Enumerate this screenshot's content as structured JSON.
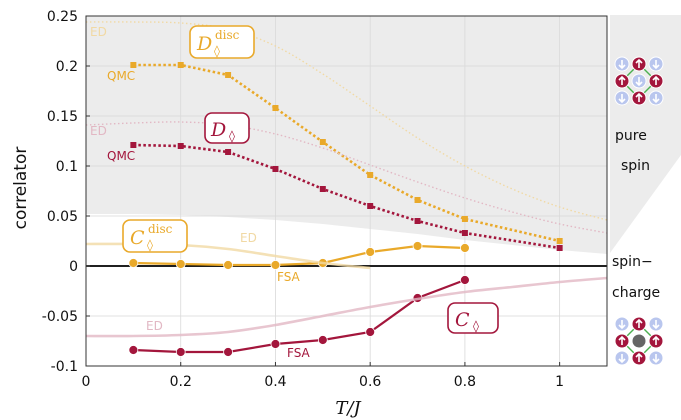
{
  "chart_data": {
    "type": "line",
    "title": "",
    "xlabel": "T/J",
    "ylabel": "correlator",
    "xlim": [
      0,
      1.1
    ],
    "ylim": [
      -0.1,
      0.25
    ],
    "xticks": [
      0,
      0.2,
      0.4,
      0.6,
      0.8,
      1
    ],
    "yticks": [
      0.25,
      0.2,
      0.15,
      0.1,
      0.05,
      0,
      -0.05,
      -0.1
    ],
    "xtick_labels": [
      "0",
      "0.2",
      "0.4",
      "0.6",
      "0.8",
      "1"
    ],
    "ytick_labels": [
      "0.25",
      "0.2",
      "0.15",
      "0.1",
      "0.05",
      "0",
      "-0.05",
      "-0.1"
    ],
    "grid": true,
    "colors": {
      "gold": "#e9a92a",
      "crimson": "#a3163c",
      "ed_gold": "#f1d9a4",
      "ed_red": "#e2b8c4",
      "shade": "#ececec"
    },
    "series": [
      {
        "name": "QMC D_disc",
        "style": "dotted-markers",
        "color": "gold",
        "x": [
          0.1,
          0.2,
          0.3,
          0.4,
          0.5,
          0.6,
          0.7,
          0.8,
          1.0
        ],
        "y": [
          0.201,
          0.201,
          0.191,
          0.158,
          0.124,
          0.091,
          0.066,
          0.047,
          0.025
        ]
      },
      {
        "name": "QMC D",
        "style": "dotted-markers",
        "color": "crimson",
        "x": [
          0.1,
          0.2,
          0.3,
          0.4,
          0.5,
          0.6,
          0.7,
          0.8,
          1.0
        ],
        "y": [
          0.121,
          0.12,
          0.114,
          0.097,
          0.077,
          0.06,
          0.045,
          0.033,
          0.018
        ]
      },
      {
        "name": "FSA C_disc",
        "style": "solid-circles",
        "color": "gold",
        "x": [
          0.1,
          0.2,
          0.3,
          0.4,
          0.5,
          0.6,
          0.7,
          0.8
        ],
        "y": [
          0.003,
          0.002,
          0.001,
          0.001,
          0.003,
          0.014,
          0.02,
          0.018
        ]
      },
      {
        "name": "FSA C",
        "style": "solid-circles",
        "color": "crimson",
        "x": [
          0.1,
          0.2,
          0.3,
          0.4,
          0.5,
          0.6,
          0.7,
          0.8
        ],
        "y": [
          -0.084,
          -0.086,
          -0.086,
          -0.078,
          -0.074,
          -0.066,
          -0.032,
          -0.014
        ]
      },
      {
        "name": "ED D_disc",
        "style": "faint-dotted",
        "color": "ed_gold",
        "x": [
          0,
          0.1,
          0.2,
          0.3,
          0.4,
          0.5,
          0.6,
          0.7,
          0.8,
          0.9,
          1.0,
          1.1
        ],
        "y": [
          0.244,
          0.244,
          0.243,
          0.237,
          0.22,
          0.192,
          0.16,
          0.128,
          0.1,
          0.077,
          0.059,
          0.046
        ]
      },
      {
        "name": "ED D",
        "style": "faint-dotted",
        "color": "ed_red",
        "x": [
          0,
          0.1,
          0.2,
          0.3,
          0.4,
          0.5,
          0.6,
          0.7,
          0.8,
          0.9,
          1.0,
          1.1
        ],
        "y": [
          0.141,
          0.143,
          0.144,
          0.141,
          0.132,
          0.118,
          0.101,
          0.084,
          0.068,
          0.054,
          0.042,
          0.033
        ]
      },
      {
        "name": "ED C_disc",
        "style": "faint-solid",
        "color": "ed_gold",
        "x": [
          0,
          0.1,
          0.2,
          0.3,
          0.4,
          0.5,
          0.6
        ],
        "y": [
          0.022,
          0.022,
          0.021,
          0.017,
          0.01,
          0.003,
          -0.002
        ]
      },
      {
        "name": "ED C",
        "style": "faint-solid",
        "color": "ed_red",
        "x": [
          0,
          0.1,
          0.2,
          0.3,
          0.4,
          0.5,
          0.6,
          0.7,
          0.8,
          0.9,
          1.0,
          1.1
        ],
        "y": [
          -0.07,
          -0.07,
          -0.069,
          -0.066,
          -0.059,
          -0.05,
          -0.041,
          -0.033,
          -0.026,
          -0.021,
          -0.016,
          -0.012
        ]
      }
    ],
    "shaded_region": {
      "x": [
        0,
        0.1,
        0.2,
        0.3,
        0.4,
        0.5,
        0.6,
        0.7,
        0.8,
        0.9,
        1.0,
        1.1
      ],
      "lower": [
        0.052,
        0.052,
        0.051,
        0.049,
        0.046,
        0.042,
        0.037,
        0.032,
        0.026,
        0.021,
        0.016,
        0.012
      ]
    },
    "annotations": {
      "ed_top": "ED",
      "ed_mid": "ED",
      "ed_cdisc": "ED",
      "ed_c": "ED",
      "qmc_top": "QMC",
      "qmc_mid": "QMC",
      "fsa_cdisc": "FSA",
      "fsa_c": "FSA",
      "tag_d_disc_main": "D",
      "tag_d_disc_sup": "disc",
      "tag_d_main": "D",
      "tag_c_disc_main": "C",
      "tag_c_disc_sup": "disc",
      "tag_c_main": "C",
      "diamond": "◊"
    },
    "side_labels": {
      "pure": "pure",
      "spin": "spin",
      "spin_dash": "spin−",
      "charge": "charge"
    }
  }
}
